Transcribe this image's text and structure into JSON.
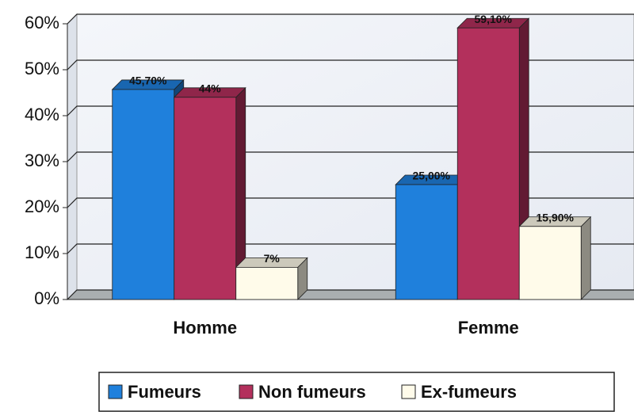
{
  "chart_data": {
    "type": "bar3d",
    "categories": [
      "Homme",
      "Femme"
    ],
    "series": [
      {
        "name": "Fumeurs",
        "color": "#1f80dc",
        "values": [
          45.7,
          25
        ],
        "value_labels": [
          "45,70%",
          "25,00%"
        ]
      },
      {
        "name": "Non fumeurs",
        "color": "#b3305c",
        "values": [
          44,
          59.1
        ],
        "value_labels": [
          "44%",
          "59,10%"
        ]
      },
      {
        "name": "Ex-fumeurs",
        "color": "#fffbea",
        "values": [
          7,
          15.9
        ],
        "value_labels": [
          "7%",
          "15,90%"
        ]
      }
    ],
    "ylim": [
      0,
      60
    ],
    "yticks": [
      {
        "value": 0,
        "label": "0%"
      },
      {
        "value": 10,
        "label": "10%"
      },
      {
        "value": 20,
        "label": "20%"
      },
      {
        "value": 30,
        "label": "30%"
      },
      {
        "value": 40,
        "label": "40%"
      },
      {
        "value": 50,
        "label": "50%"
      },
      {
        "value": 60,
        "label": "60%"
      }
    ],
    "grid": true,
    "legend": "bottom"
  }
}
